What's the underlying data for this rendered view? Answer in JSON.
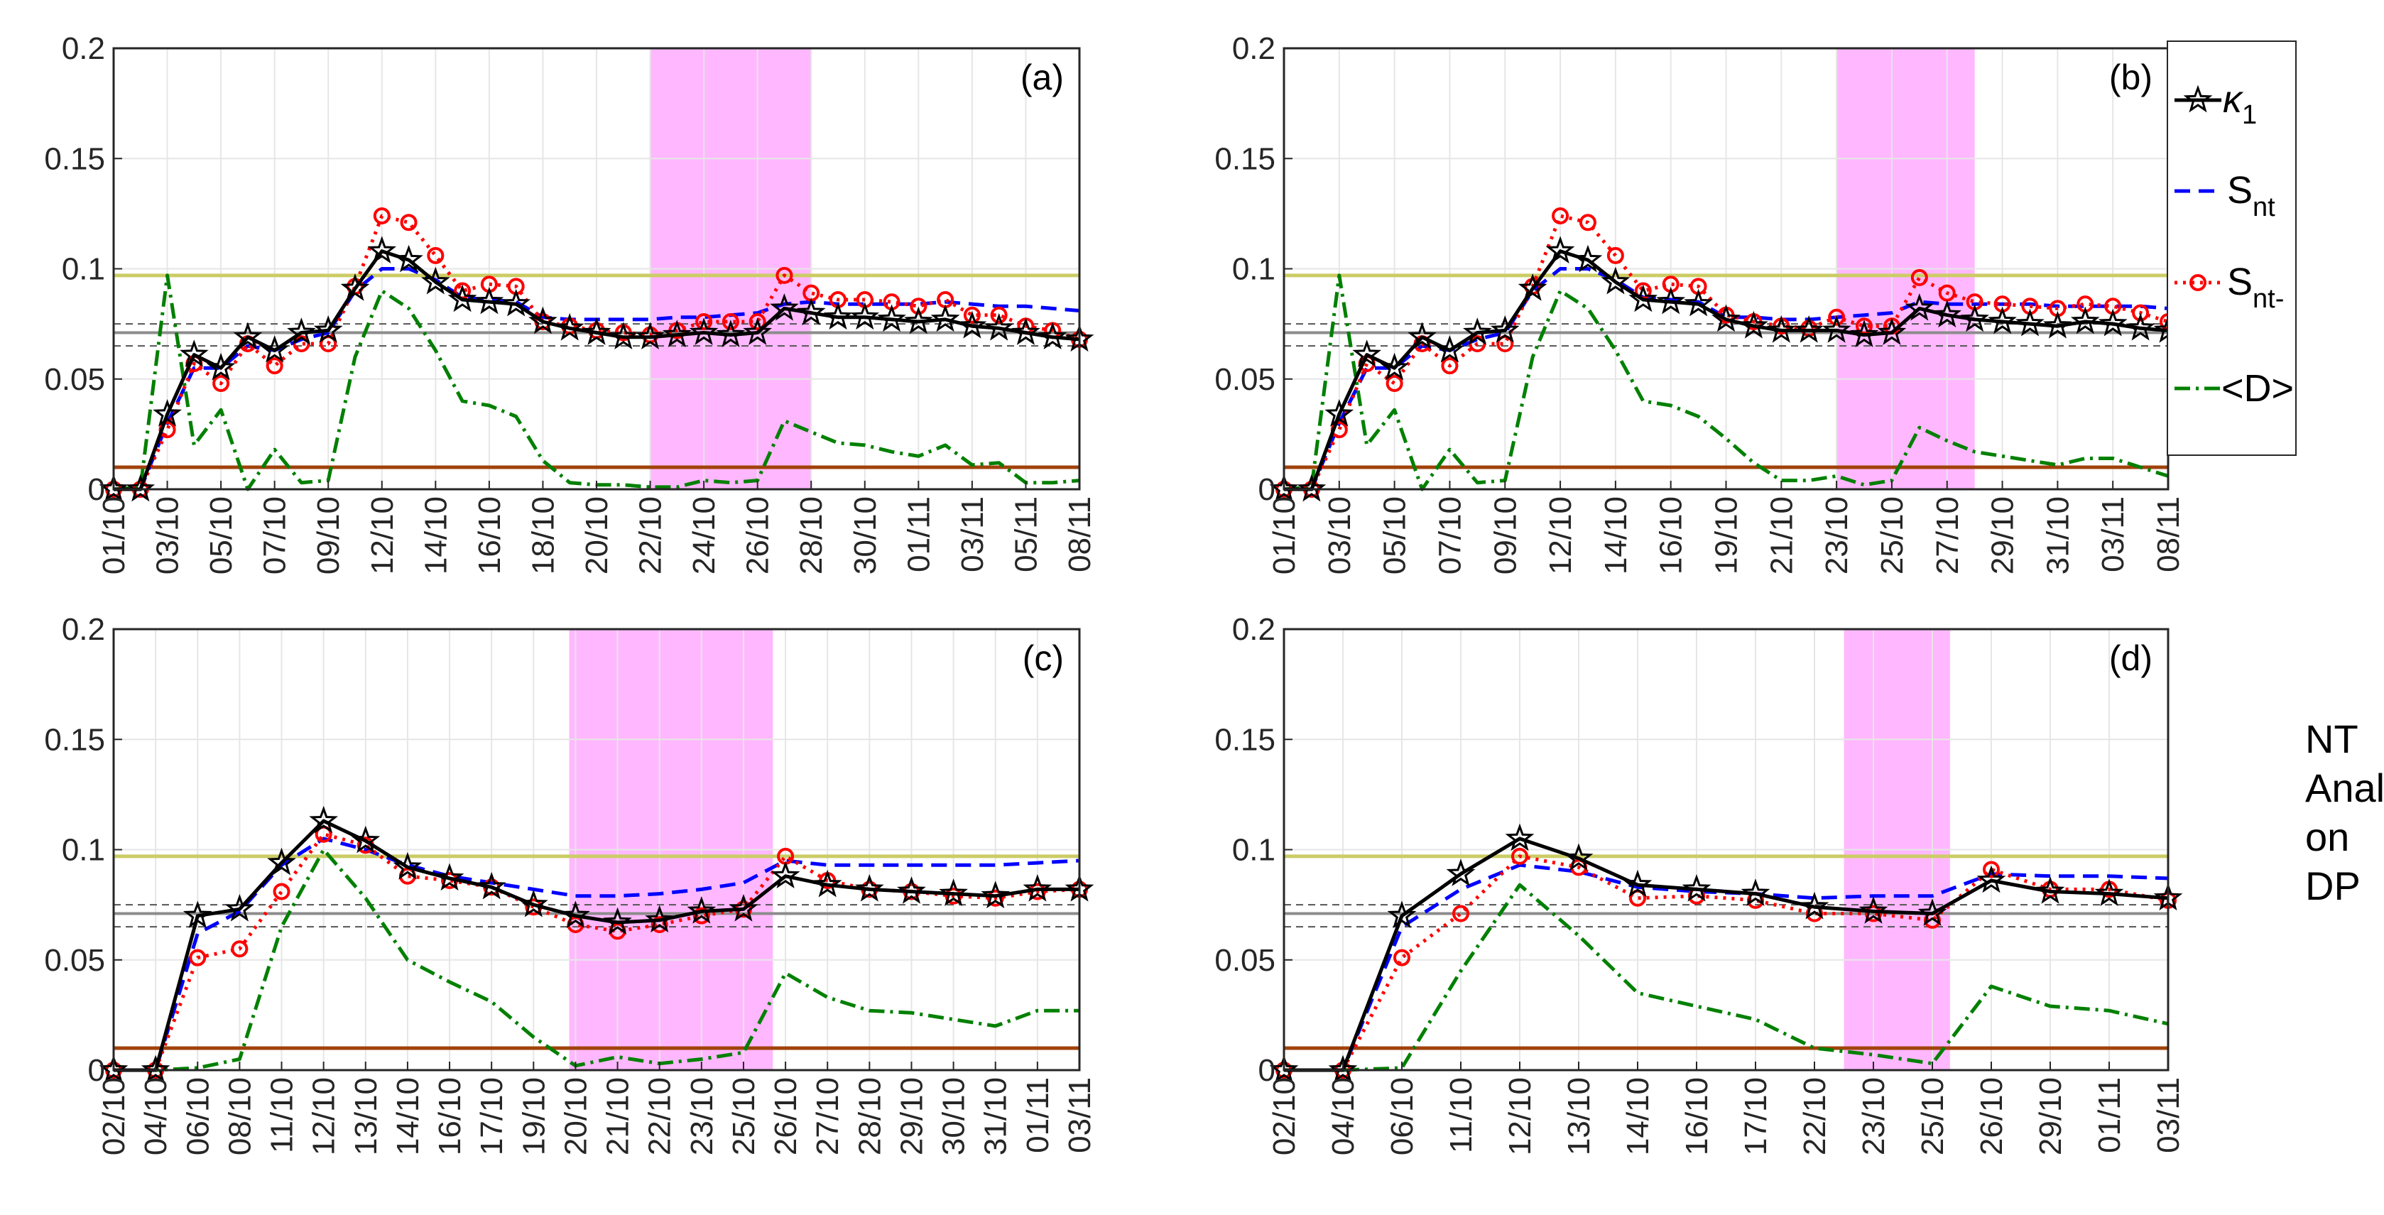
{
  "legend": {
    "kappa": {
      "symbol": "κ",
      "sub": "1",
      "color": "#000000"
    },
    "snt": {
      "label": "S",
      "sub": "nt",
      "color": "#0000ff"
    },
    "sntm": {
      "label": "S",
      "sub": "nt-",
      "color": "#ff0000"
    },
    "d": {
      "label": "<D>",
      "color": "#008000"
    }
  },
  "side_note": {
    "line1": "NT",
    "line2": "Analysis",
    "line3": "on",
    "line4": "DP"
  },
  "chart_data": [
    {
      "type": "line",
      "panel_label": "(a)",
      "ylim": [
        0,
        0.2
      ],
      "yticks": [
        "0",
        "0.05",
        "0.1",
        "0.15",
        "0.2"
      ],
      "xticklabels": [
        "01/10",
        "03/10",
        "05/10",
        "07/10",
        "09/10",
        "12/10",
        "14/10",
        "16/10",
        "18/10",
        "20/10",
        "22/10",
        "24/10",
        "26/10",
        "28/10",
        "30/10",
        "01/11",
        "03/11",
        "05/11",
        "08/11"
      ],
      "n_points": 37,
      "shaded_region": [
        20,
        26
      ],
      "reference_lines": {
        "upper": 0.097,
        "lower": 0.01,
        "mean": 0.071,
        "band": [
          0.065,
          0.075
        ]
      },
      "series": [
        {
          "key": "kappa",
          "values": [
            0,
            0,
            0.034,
            0.061,
            0.055,
            0.069,
            0.063,
            0.071,
            0.072,
            0.091,
            0.108,
            0.104,
            0.094,
            0.086,
            0.085,
            0.084,
            0.076,
            0.073,
            0.071,
            0.069,
            0.069,
            0.07,
            0.071,
            0.07,
            0.071,
            0.082,
            0.08,
            0.078,
            0.078,
            0.077,
            0.076,
            0.077,
            0.074,
            0.073,
            0.071,
            0.069,
            0.068
          ]
        },
        {
          "key": "snt",
          "values": [
            0,
            0,
            0.03,
            0.055,
            0.055,
            0.065,
            0.063,
            0.068,
            0.071,
            0.09,
            0.1,
            0.1,
            0.095,
            0.087,
            0.086,
            0.085,
            0.078,
            0.077,
            0.077,
            0.077,
            0.077,
            0.078,
            0.078,
            0.079,
            0.08,
            0.084,
            0.085,
            0.084,
            0.084,
            0.084,
            0.084,
            0.085,
            0.084,
            0.083,
            0.083,
            0.082,
            0.081
          ]
        },
        {
          "key": "sntm",
          "values": [
            0,
            0,
            0.027,
            0.057,
            0.048,
            0.066,
            0.056,
            0.066,
            0.066,
            0.092,
            0.124,
            0.121,
            0.106,
            0.09,
            0.093,
            0.092,
            0.076,
            0.074,
            0.072,
            0.071,
            0.07,
            0.072,
            0.076,
            0.076,
            0.076,
            0.097,
            0.089,
            0.086,
            0.086,
            0.085,
            0.083,
            0.086,
            0.079,
            0.079,
            0.074,
            0.072,
            0.068
          ]
        },
        {
          "key": "d",
          "values": [
            0,
            0.001,
            0.097,
            0.02,
            0.036,
            0.0,
            0.018,
            0.003,
            0.004,
            0.06,
            0.09,
            0.082,
            0.063,
            0.04,
            0.038,
            0.033,
            0.013,
            0.003,
            0.002,
            0.002,
            0.001,
            0.001,
            0.004,
            0.003,
            0.004,
            0.031,
            0.026,
            0.021,
            0.02,
            0.017,
            0.015,
            0.02,
            0.011,
            0.012,
            0.003,
            0.003,
            0.004
          ]
        }
      ]
    },
    {
      "type": "line",
      "panel_label": "(b)",
      "ylim": [
        0,
        0.2
      ],
      "yticks": [
        "0",
        "0.05",
        "0.1",
        "0.15",
        "0.2"
      ],
      "xticklabels": [
        "01/10",
        "03/10",
        "05/10",
        "07/10",
        "09/10",
        "12/10",
        "14/10",
        "16/10",
        "19/10",
        "21/10",
        "23/10",
        "25/10",
        "27/10",
        "29/10",
        "31/10",
        "03/11",
        "08/11"
      ],
      "n_points": 33,
      "shaded_region": [
        20,
        25
      ],
      "reference_lines": {
        "upper": 0.097,
        "lower": 0.01,
        "mean": 0.071,
        "band": [
          0.065,
          0.075
        ]
      },
      "series": [
        {
          "key": "kappa",
          "values": [
            0,
            0,
            0.034,
            0.061,
            0.055,
            0.069,
            0.063,
            0.071,
            0.072,
            0.091,
            0.108,
            0.104,
            0.094,
            0.086,
            0.085,
            0.084,
            0.077,
            0.074,
            0.072,
            0.072,
            0.072,
            0.07,
            0.071,
            0.082,
            0.079,
            0.077,
            0.076,
            0.075,
            0.074,
            0.076,
            0.075,
            0.073,
            0.072
          ]
        },
        {
          "key": "snt",
          "values": [
            0,
            0,
            0.03,
            0.055,
            0.055,
            0.065,
            0.063,
            0.068,
            0.071,
            0.09,
            0.1,
            0.1,
            0.095,
            0.087,
            0.086,
            0.085,
            0.078,
            0.078,
            0.077,
            0.077,
            0.078,
            0.079,
            0.08,
            0.085,
            0.084,
            0.084,
            0.084,
            0.084,
            0.083,
            0.083,
            0.083,
            0.083,
            0.082
          ]
        },
        {
          "key": "sntm",
          "values": [
            0,
            0,
            0.027,
            0.057,
            0.048,
            0.066,
            0.056,
            0.066,
            0.066,
            0.092,
            0.124,
            0.121,
            0.106,
            0.09,
            0.093,
            0.092,
            0.079,
            0.076,
            0.074,
            0.073,
            0.078,
            0.074,
            0.074,
            0.096,
            0.089,
            0.085,
            0.084,
            0.083,
            0.082,
            0.084,
            0.083,
            0.08,
            0.076
          ]
        },
        {
          "key": "d",
          "values": [
            0,
            0.001,
            0.097,
            0.02,
            0.036,
            0.0,
            0.018,
            0.003,
            0.004,
            0.06,
            0.09,
            0.082,
            0.063,
            0.04,
            0.038,
            0.033,
            0.023,
            0.012,
            0.004,
            0.004,
            0.006,
            0.002,
            0.004,
            0.028,
            0.022,
            0.017,
            0.015,
            0.013,
            0.011,
            0.014,
            0.014,
            0.01,
            0.006
          ]
        }
      ]
    },
    {
      "type": "line",
      "panel_label": "(c)",
      "ylim": [
        0,
        0.2
      ],
      "yticks": [
        "0",
        "0.05",
        "0.1",
        "0.15",
        "0.2"
      ],
      "xticklabels": [
        "02/10",
        "04/10",
        "06/10",
        "08/10",
        "11/10",
        "12/10",
        "13/10",
        "14/10",
        "16/10",
        "17/10",
        "19/10",
        "20/10",
        "21/10",
        "22/10",
        "23/10",
        "25/10",
        "26/10",
        "27/10",
        "28/10",
        "29/10",
        "30/10",
        "31/10",
        "01/11",
        "03/11"
      ],
      "n_points": 24,
      "shaded_region": [
        10.85,
        15.7
      ],
      "reference_lines": {
        "upper": 0.097,
        "lower": 0.01,
        "mean": 0.071,
        "band": [
          0.065,
          0.075
        ]
      },
      "series": [
        {
          "key": "kappa",
          "values": [
            0,
            0,
            0.07,
            0.073,
            0.094,
            0.113,
            0.104,
            0.092,
            0.087,
            0.083,
            0.075,
            0.07,
            0.067,
            0.068,
            0.072,
            0.073,
            0.088,
            0.084,
            0.082,
            0.081,
            0.08,
            0.079,
            0.082,
            0.082
          ]
        },
        {
          "key": "snt",
          "values": [
            0,
            0,
            0.062,
            0.072,
            0.093,
            0.105,
            0.1,
            0.093,
            0.088,
            0.085,
            0.082,
            0.079,
            0.079,
            0.08,
            0.082,
            0.085,
            0.095,
            0.093,
            0.093,
            0.093,
            0.093,
            0.093,
            0.094,
            0.095
          ]
        },
        {
          "key": "sntm",
          "values": [
            0,
            0,
            0.051,
            0.055,
            0.081,
            0.107,
            0.102,
            0.088,
            0.086,
            0.083,
            0.074,
            0.066,
            0.063,
            0.066,
            0.07,
            0.073,
            0.097,
            0.086,
            0.082,
            0.081,
            0.079,
            0.078,
            0.081,
            0.082
          ]
        },
        {
          "key": "d",
          "values": [
            0,
            0,
            0.001,
            0.005,
            0.065,
            0.1,
            0.078,
            0.05,
            0.04,
            0.031,
            0.015,
            0.002,
            0.006,
            0.003,
            0.005,
            0.008,
            0.044,
            0.033,
            0.027,
            0.026,
            0.023,
            0.02,
            0.027,
            0.027
          ]
        }
      ]
    },
    {
      "type": "line",
      "panel_label": "(d)",
      "ylim": [
        0,
        0.2
      ],
      "yticks": [
        "0",
        "0.05",
        "0.1",
        "0.15",
        "0.2"
      ],
      "xticklabels": [
        "02/10",
        "04/10",
        "06/10",
        "11/10",
        "12/10",
        "13/10",
        "14/10",
        "16/10",
        "17/10",
        "22/10",
        "23/10",
        "25/10",
        "26/10",
        "29/10",
        "01/11",
        "03/11"
      ],
      "n_points": 16,
      "shaded_region": [
        9.5,
        11.3
      ],
      "reference_lines": {
        "upper": 0.097,
        "lower": 0.01,
        "mean": 0.071,
        "band": [
          0.065,
          0.075
        ]
      },
      "series": [
        {
          "key": "kappa",
          "values": [
            0,
            0,
            0.07,
            0.089,
            0.105,
            0.096,
            0.084,
            0.082,
            0.08,
            0.074,
            0.072,
            0.071,
            0.086,
            0.081,
            0.08,
            0.078
          ]
        },
        {
          "key": "snt",
          "values": [
            0,
            0,
            0.065,
            0.082,
            0.093,
            0.09,
            0.083,
            0.081,
            0.08,
            0.078,
            0.079,
            0.079,
            0.089,
            0.088,
            0.088,
            0.087
          ]
        },
        {
          "key": "sntm",
          "values": [
            0,
            0,
            0.051,
            0.071,
            0.097,
            0.092,
            0.078,
            0.079,
            0.077,
            0.071,
            0.071,
            0.068,
            0.091,
            0.082,
            0.082,
            0.077
          ]
        },
        {
          "key": "d",
          "values": [
            0,
            0,
            0.001,
            0.045,
            0.084,
            0.061,
            0.035,
            0.029,
            0.023,
            0.01,
            0.007,
            0.003,
            0.038,
            0.029,
            0.027,
            0.021
          ]
        }
      ]
    }
  ]
}
